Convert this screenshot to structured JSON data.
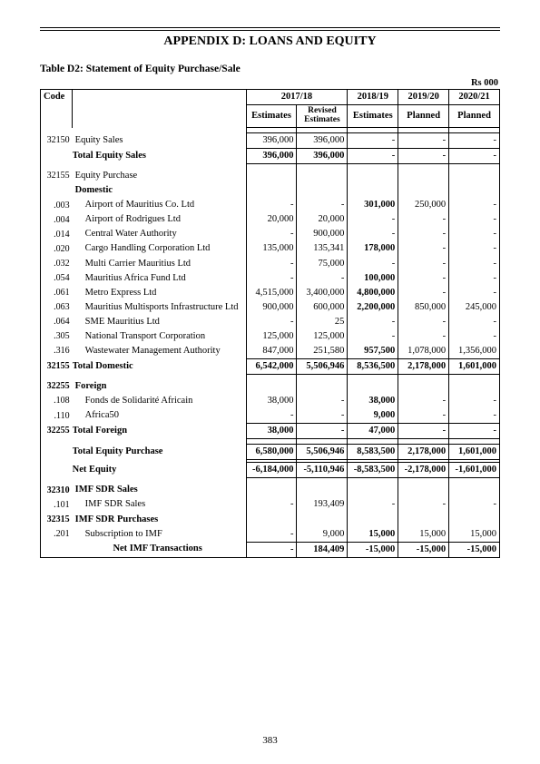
{
  "header": {
    "appendix_title": "APPENDIX D: LOANS AND EQUITY",
    "table_title": "Table D2: Statement of Equity Purchase/Sale",
    "unit": "Rs 000"
  },
  "columns": {
    "code": "Code",
    "y1718": "2017/18",
    "y1819": "2018/19",
    "y1920": "2019/20",
    "y2021": "2020/21",
    "estimates": "Estimates",
    "revised": "Revised Estimates",
    "planned": "Planned"
  },
  "rows": [
    {
      "type": "data",
      "code": "32150",
      "desc": "Equity Sales",
      "indent": 0,
      "v": [
        "396,000",
        "396,000",
        "-",
        "-",
        "-"
      ]
    },
    {
      "type": "total",
      "desc": "Total Equity Sales",
      "bold": true,
      "v": [
        "396,000",
        "396,000",
        "-",
        "-",
        "-"
      ]
    },
    {
      "type": "spacer"
    },
    {
      "type": "data",
      "code": "32155",
      "desc": "Equity Purchase",
      "indent": 0,
      "v": [
        "",
        "",
        "",
        "",
        ""
      ]
    },
    {
      "type": "data",
      "desc": "Domestic",
      "indent": 0,
      "bold": true,
      "v": [
        "",
        "",
        "",
        "",
        ""
      ]
    },
    {
      "type": "data",
      "code": ".003",
      "desc": "Airport of Mauritius Co. Ltd",
      "indent": 2,
      "v": [
        "-",
        "-",
        "301,000",
        "250,000",
        "-"
      ],
      "boldcols": [
        2
      ]
    },
    {
      "type": "data",
      "code": ".004",
      "desc": "Airport of Rodrigues Ltd",
      "indent": 2,
      "v": [
        "20,000",
        "20,000",
        "-",
        "-",
        "-"
      ]
    },
    {
      "type": "data",
      "code": ".014",
      "desc": "Central Water Authority",
      "indent": 2,
      "v": [
        "-",
        "900,000",
        "-",
        "-",
        "-"
      ]
    },
    {
      "type": "data",
      "code": ".020",
      "desc": "Cargo Handling Corporation Ltd",
      "indent": 2,
      "v": [
        "135,000",
        "135,341",
        "178,000",
        "-",
        "-"
      ],
      "boldcols": [
        2
      ]
    },
    {
      "type": "data",
      "code": ".032",
      "desc": "Multi Carrier Mauritius Ltd",
      "indent": 2,
      "v": [
        "-",
        "75,000",
        "-",
        "-",
        "-"
      ]
    },
    {
      "type": "data",
      "code": ".054",
      "desc": "Mauritius Africa Fund Ltd",
      "indent": 2,
      "v": [
        "-",
        "-",
        "100,000",
        "-",
        "-"
      ],
      "boldcols": [
        2
      ]
    },
    {
      "type": "data",
      "code": ".061",
      "desc": "Metro Express Ltd",
      "indent": 2,
      "v": [
        "4,515,000",
        "3,400,000",
        "4,800,000",
        "-",
        "-"
      ],
      "boldcols": [
        2
      ]
    },
    {
      "type": "data",
      "code": ".063",
      "desc": "Mauritius Multisports Infrastructure Ltd",
      "indent": 2,
      "v": [
        "900,000",
        "600,000",
        "2,200,000",
        "850,000",
        "245,000"
      ],
      "boldcols": [
        2
      ]
    },
    {
      "type": "data",
      "code": ".064",
      "desc": "SME Mauritius Ltd",
      "indent": 2,
      "v": [
        "-",
        "25",
        "-",
        "-",
        "-"
      ]
    },
    {
      "type": "data",
      "code": ".305",
      "desc": "National Transport Corporation",
      "indent": 2,
      "v": [
        "125,000",
        "125,000",
        "-",
        "-",
        "-"
      ]
    },
    {
      "type": "data",
      "code": ".316",
      "desc": "Wastewater Management Authority",
      "indent": 2,
      "v": [
        "847,000",
        "251,580",
        "957,500",
        "1,078,000",
        "1,356,000"
      ],
      "boldcols": [
        2
      ]
    },
    {
      "type": "total",
      "code": "32155",
      "desc": "Total Domestic",
      "bold": true,
      "v": [
        "6,542,000",
        "5,506,946",
        "8,536,500",
        "2,178,000",
        "1,601,000"
      ],
      "codebold": true
    },
    {
      "type": "spacer"
    },
    {
      "type": "data",
      "code": "32255",
      "desc": "Foreign",
      "indent": 0,
      "bold": true,
      "v": [
        "",
        "",
        "",
        "",
        ""
      ],
      "codebold": true
    },
    {
      "type": "data",
      "code": ".108",
      "desc": "Fonds de Solidarité Africain",
      "indent": 2,
      "v": [
        "38,000",
        "-",
        "38,000",
        "-",
        "-"
      ],
      "boldcols": [
        2
      ]
    },
    {
      "type": "data",
      "code": ".110",
      "desc": "Africa50",
      "indent": 2,
      "v": [
        "-",
        "-",
        "9,000",
        "-",
        "-"
      ],
      "boldcols": [
        2
      ]
    },
    {
      "type": "total",
      "code": "32255",
      "desc": "Total Foreign",
      "bold": true,
      "v": [
        "38,000",
        "-",
        "47,000",
        "-",
        "-"
      ],
      "codebold": true
    },
    {
      "type": "spacer"
    },
    {
      "type": "total",
      "desc": "Total Equity Purchase",
      "bold": true,
      "v": [
        "6,580,000",
        "5,506,946",
        "8,583,500",
        "2,178,000",
        "1,601,000"
      ]
    },
    {
      "type": "dblgap"
    },
    {
      "type": "total",
      "desc": "Net Equity",
      "bold": true,
      "indent": 2,
      "v": [
        "-6,184,000",
        "-5,110,946",
        "-8,583,500",
        "-2,178,000",
        "-1,601,000"
      ]
    },
    {
      "type": "spacer"
    },
    {
      "type": "data",
      "code": "32310",
      "desc": "IMF SDR Sales",
      "indent": 0,
      "bold": true,
      "v": [
        "",
        "",
        "",
        "",
        ""
      ],
      "codebold": true
    },
    {
      "type": "data",
      "code": ".101",
      "desc": "IMF SDR Sales",
      "indent": 2,
      "v": [
        "-",
        "193,409",
        "-",
        "-",
        "-"
      ]
    },
    {
      "type": "data",
      "code": "32315",
      "desc": "IMF SDR Purchases",
      "indent": 0,
      "bold": true,
      "v": [
        "",
        "",
        "",
        "",
        ""
      ],
      "codebold": true
    },
    {
      "type": "data",
      "code": ".201",
      "desc": "Subscription to IMF",
      "indent": 2,
      "v": [
        "-",
        "9,000",
        "15,000",
        "15,000",
        "15,000"
      ],
      "boldcols": [
        2
      ]
    },
    {
      "type": "final",
      "desc": "Net IMF Transactions",
      "bold": true,
      "indent": 2,
      "center": true,
      "v": [
        "-",
        "184,409",
        "-15,000",
        "-15,000",
        "-15,000"
      ]
    }
  ],
  "page_number": "383"
}
